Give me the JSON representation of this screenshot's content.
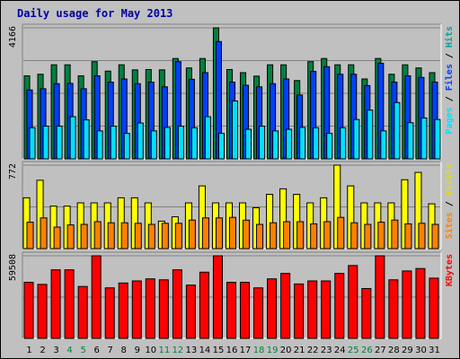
{
  "title": "Daily usage for May 2013",
  "chart_data": [
    {
      "type": "bar",
      "name_panel": "hits-files-pages",
      "ymax_label": "4166",
      "ylim": [
        0,
        4166
      ],
      "categories": [
        "1",
        "2",
        "3",
        "4",
        "5",
        "6",
        "7",
        "8",
        "9",
        "10",
        "11",
        "12",
        "13",
        "14",
        "15",
        "16",
        "17",
        "18",
        "19",
        "20",
        "21",
        "22",
        "23",
        "24",
        "25",
        "26",
        "27",
        "28",
        "29",
        "30",
        "31"
      ],
      "legend": [
        {
          "text": "Hits",
          "color": "#00a0a0"
        },
        {
          "text": " / ",
          "color": "#000000"
        },
        {
          "text": "Files",
          "color": "#0040ff"
        },
        {
          "text": " / ",
          "color": "#000000"
        },
        {
          "text": "Pages",
          "color": "#00e0ff"
        }
      ],
      "series": [
        {
          "name": "Hits",
          "color": "#008040",
          "values": [
            2640,
            2690,
            2990,
            2990,
            2640,
            3090,
            2790,
            2990,
            2830,
            2840,
            2830,
            3190,
            2890,
            3190,
            4166,
            2840,
            2740,
            2630,
            2990,
            2990,
            2490,
            3090,
            3190,
            2990,
            2990,
            2540,
            3190,
            2690,
            2990,
            2890,
            2740
          ]
        },
        {
          "name": "Files",
          "color": "#0040ff",
          "values": [
            2190,
            2230,
            2390,
            2400,
            2230,
            2640,
            2440,
            2540,
            2390,
            2440,
            2290,
            3090,
            2530,
            2740,
            3730,
            2440,
            2340,
            2290,
            2390,
            2540,
            2030,
            2780,
            2930,
            2690,
            2690,
            2330,
            3040,
            2440,
            2640,
            2590,
            2440
          ]
        },
        {
          "name": "Pages",
          "color": "#00e0ff",
          "values": [
            990,
            1040,
            1040,
            1340,
            1240,
            890,
            1040,
            810,
            1140,
            890,
            1000,
            1040,
            990,
            1340,
            810,
            1840,
            940,
            1040,
            890,
            940,
            1000,
            990,
            810,
            990,
            1250,
            1550,
            890,
            1790,
            1150,
            1300,
            1250
          ]
        }
      ],
      "highlight_weekend_days": [
        "4",
        "5",
        "11",
        "12",
        "18",
        "19",
        "25",
        "26"
      ],
      "gridlines": 4
    },
    {
      "type": "bar",
      "name_panel": "visits-sites",
      "ymax_label": "772",
      "ylim": [
        0,
        772
      ],
      "legend": [
        {
          "text": "Visits",
          "color": "#e0e000"
        },
        {
          "text": " / ",
          "color": "#000000"
        },
        {
          "text": "Sites",
          "color": "#ff8000"
        }
      ],
      "series": [
        {
          "name": "Visits",
          "color": "#ffff00",
          "values": [
            470,
            632,
            393,
            393,
            423,
            423,
            423,
            470,
            470,
            423,
            254,
            294,
            423,
            580,
            423,
            423,
            423,
            378,
            502,
            553,
            502,
            423,
            470,
            772,
            580,
            423,
            423,
            423,
            637,
            705,
            414
          ]
        },
        {
          "name": "Sites",
          "color": "#ff8000",
          "values": [
            244,
            284,
            199,
            219,
            224,
            249,
            239,
            239,
            234,
            224,
            234,
            234,
            264,
            284,
            284,
            289,
            263,
            224,
            239,
            249,
            249,
            229,
            249,
            289,
            239,
            224,
            244,
            264,
            229,
            234,
            224
          ]
        }
      ],
      "gridlines": 2
    },
    {
      "type": "bar",
      "name_panel": "kbytes",
      "ymax_label": "59508",
      "ylim": [
        0,
        59508
      ],
      "legend": [
        {
          "text": "KBytes",
          "color": "#ff0000"
        }
      ],
      "series": [
        {
          "name": "KBytes",
          "color": "#ff0000",
          "values": [
            40400,
            38900,
            49400,
            49400,
            37400,
            59508,
            36400,
            39900,
            41400,
            42900,
            42200,
            49400,
            38400,
            47700,
            59508,
            40400,
            40400,
            36400,
            42900,
            46800,
            39200,
            41400,
            41400,
            46800,
            52500,
            35900,
            59508,
            42200,
            48600,
            50300,
            43400
          ]
        }
      ],
      "gridlines": 2
    }
  ]
}
